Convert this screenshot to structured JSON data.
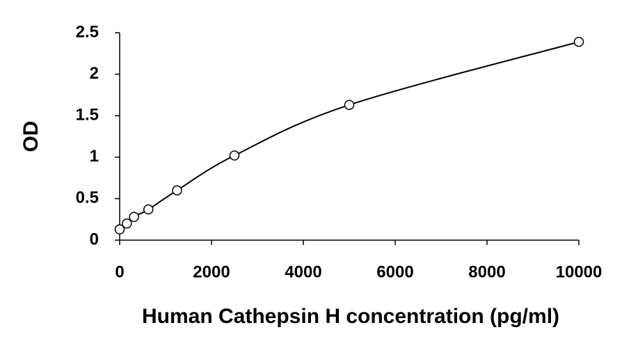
{
  "chart_data": {
    "type": "scatter",
    "x_label": "Human Cathepsin H concentration (pg/ml)",
    "y_label": "OD",
    "series": [
      {
        "x": [
          0,
          156.25,
          312.5,
          625,
          1250,
          2500,
          5000,
          10000
        ],
        "values": [
          0.13,
          0.2,
          0.28,
          0.37,
          0.6,
          1.02,
          1.63,
          2.39
        ],
        "color": "#000000"
      }
    ],
    "fit_line": true,
    "xlim": [
      0,
      10000
    ],
    "xticks": [
      0,
      2000,
      4000,
      6000,
      8000,
      10000
    ],
    "ylim": [
      0,
      2.5
    ],
    "yticks": [
      0,
      0.5,
      1,
      1.5,
      2,
      2.5
    ]
  }
}
